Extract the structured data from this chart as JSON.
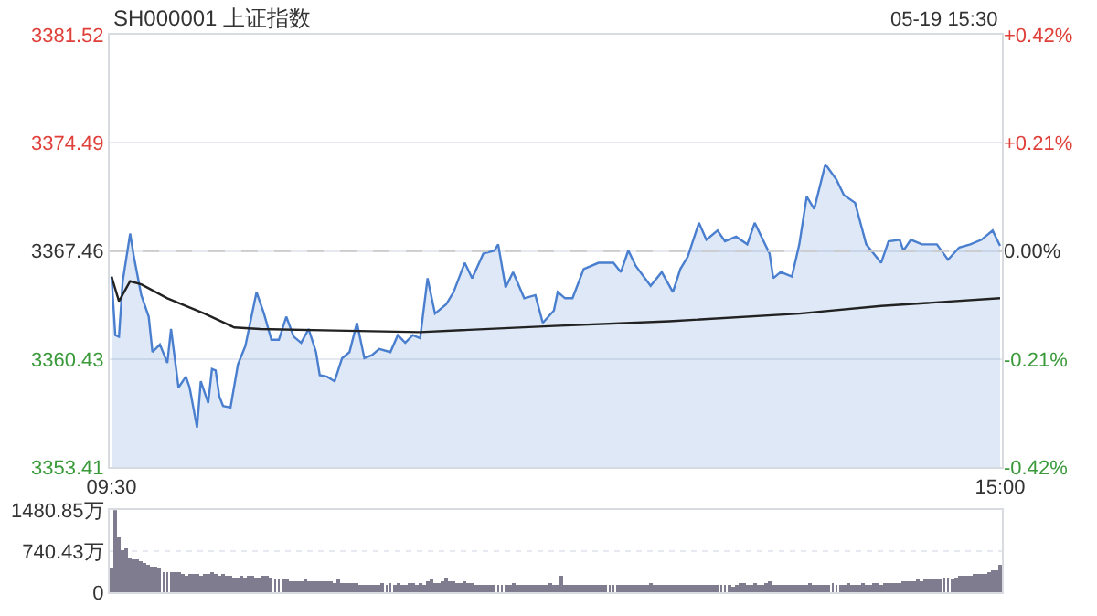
{
  "chart_data": [
    {
      "type": "line",
      "title": "SH000001 上证指数",
      "annotations": [
        "05-19 15:30"
      ],
      "categories": [
        "09:30",
        null,
        null,
        null,
        null,
        null,
        null,
        null,
        null,
        null,
        null,
        null,
        null,
        null,
        null,
        null,
        null,
        null,
        null,
        null,
        null,
        null,
        null,
        null,
        null,
        null,
        null,
        null,
        null,
        null,
        null,
        null,
        null,
        null,
        null,
        null,
        null,
        null,
        null,
        null,
        null,
        null,
        null,
        null,
        null,
        null,
        null,
        null,
        null,
        null,
        null,
        null,
        null,
        null,
        null,
        null,
        null,
        null,
        null,
        null,
        null,
        null,
        null,
        null,
        null,
        null,
        null,
        null,
        null,
        null,
        null,
        null,
        null,
        null,
        null,
        null,
        null,
        null,
        null,
        null,
        null,
        null,
        null,
        null,
        null,
        null,
        null,
        null,
        null,
        null,
        null,
        null,
        null,
        null,
        null,
        null,
        null,
        null,
        null,
        null,
        null,
        null,
        null,
        null,
        null,
        null,
        null,
        null,
        null,
        null,
        null,
        null,
        null,
        null,
        null,
        null,
        null,
        null,
        null,
        null,
        null,
        null,
        null,
        null,
        null,
        null,
        null,
        null,
        null,
        null,
        null,
        null,
        null,
        null,
        null,
        null,
        null,
        null,
        null,
        null,
        null,
        null,
        null,
        null,
        null,
        null,
        null,
        null,
        null,
        null,
        null,
        null,
        null,
        null,
        null,
        null,
        null,
        null,
        null,
        null,
        null,
        null,
        null,
        null,
        null,
        null,
        null,
        null,
        null,
        null,
        null,
        null,
        null,
        null,
        null,
        null,
        null,
        null,
        null,
        null,
        null,
        null,
        null,
        null,
        null,
        null,
        null,
        null,
        null,
        null,
        null,
        null,
        null,
        null,
        null,
        null,
        null,
        null,
        null,
        null,
        null,
        null,
        null,
        null,
        null,
        null,
        null,
        null,
        null,
        null,
        null,
        null,
        null,
        null,
        null,
        null,
        null,
        null,
        null,
        null,
        null,
        null,
        null,
        null,
        null,
        null,
        null,
        null,
        null,
        null,
        null,
        null,
        null,
        null,
        null,
        null,
        null,
        null,
        null,
        "15:00"
      ],
      "ylim": [
        3353.41,
        3381.52
      ],
      "yticks": [
        3353.41,
        3360.43,
        3367.46,
        3374.49,
        3381.52
      ],
      "y2lim": [
        -0.42,
        0.42
      ],
      "y2ticks": [
        {
          "value": -0.42,
          "label": "-0.42%"
        },
        {
          "value": -0.21,
          "label": "-0.21%"
        },
        {
          "value": 0,
          "label": "0.00%"
        },
        {
          "value": 0.21,
          "label": "+0.21%"
        },
        {
          "value": 0.42,
          "label": "+0.42%"
        }
      ],
      "grid": "y",
      "ref_lines": [
        {
          "axis": "y",
          "value": 3367.46,
          "line_style": "dashed",
          "color": "#cccccc"
        }
      ],
      "series": [
        {
          "type": "area",
          "color": "#4a7fcf",
          "values": [
            3365.8,
            3362.0,
            3361.9,
            3365.5,
            null,
            3368.6,
            3367.1,
            null,
            3364.6,
            null,
            3363.2,
            3360.9,
            null,
            3361.4,
            null,
            3360.2,
            3362.4,
            null,
            3358.6,
            null,
            3359.3,
            3358.6,
            null,
            3356.0,
            3359.0,
            null,
            3357.6,
            3359.8,
            3359.7,
            3358.0,
            3357.4,
            null,
            3357.3,
            null,
            3360.1,
            null,
            3361.3,
            null,
            null,
            3364.8,
            null,
            3363.4,
            null,
            3361.7,
            null,
            3361.7,
            null,
            3363.2,
            null,
            3361.9,
            null,
            3361.5,
            null,
            3362.4,
            null,
            3360.9,
            3359.4,
            null,
            3359.3,
            null,
            3359.0,
            null,
            3360.5,
            null,
            3360.9,
            null,
            3362.8,
            null,
            3360.5,
            null,
            3360.7,
            null,
            3361.1,
            null,
            null,
            3360.9,
            null,
            3362.0,
            null,
            3361.5,
            null,
            3362.0,
            null,
            3361.8,
            null,
            3365.7,
            null,
            3363.4,
            null,
            null,
            3364.0,
            null,
            3364.8,
            null,
            null,
            3366.7,
            null,
            3365.7,
            null,
            null,
            3367.3,
            null,
            null,
            3367.5,
            3367.9,
            null,
            3365.1,
            null,
            3366.1,
            null,
            null,
            3364.4,
            null,
            null,
            3364.6,
            null,
            3362.8,
            null,
            null,
            3363.6,
            3364.8,
            null,
            3364.4,
            null,
            3364.4,
            null,
            null,
            3366.3,
            null,
            null,
            null,
            3366.7,
            null,
            null,
            null,
            3366.7,
            null,
            3366.1,
            null,
            3367.5,
            null,
            3366.5,
            null,
            null,
            null,
            3365.2,
            null,
            null,
            3366.1,
            null,
            null,
            3364.8,
            null,
            3366.3,
            null,
            3367.1,
            null,
            null,
            3369.3,
            null,
            3368.2,
            null,
            null,
            3368.8,
            null,
            3368.1,
            null,
            null,
            3368.4,
            null,
            null,
            3367.9,
            null,
            3369.3,
            null,
            null,
            null,
            3367.3,
            3365.7,
            null,
            3366.1,
            null,
            null,
            3365.8,
            null,
            3367.9,
            null,
            3371.0,
            null,
            3370.2,
            null,
            null,
            3373.1,
            null,
            null,
            3372.1,
            null,
            3371.1,
            null,
            null,
            3370.6,
            null,
            null,
            3367.9,
            null,
            null,
            null,
            3366.7,
            null,
            3368.1,
            null,
            null,
            3368.2,
            3367.5,
            null,
            3368.2,
            null,
            null,
            3367.9,
            null,
            null,
            null,
            3367.9,
            null,
            null,
            3366.9,
            null,
            null,
            3367.7,
            null,
            null,
            3367.9,
            null,
            null,
            3368.2,
            null,
            null,
            3368.8,
            null,
            3367.8
          ]
        },
        {
          "type": "line",
          "color": "#222222",
          "values": [
            3365.8,
            null,
            3364.2,
            null,
            null,
            3365.5,
            null,
            null,
            3365.3,
            null,
            null,
            null,
            null,
            null,
            null,
            3364.4,
            null,
            null,
            null,
            null,
            null,
            null,
            null,
            null,
            null,
            3363.4,
            null,
            null,
            null,
            null,
            null,
            null,
            null,
            3362.5,
            null,
            null,
            null,
            null,
            null,
            null,
            3362.4,
            null,
            null,
            null,
            null,
            null,
            null,
            null,
            null,
            null,
            null,
            null,
            null,
            null,
            null,
            null,
            null,
            null,
            null,
            null,
            3362.3,
            null,
            null,
            null,
            null,
            null,
            null,
            null,
            null,
            null,
            null,
            null,
            null,
            null,
            null,
            null,
            null,
            null,
            null,
            null,
            null,
            null,
            null,
            3362.2,
            null,
            null,
            null,
            null,
            null,
            null,
            null,
            null,
            null,
            null,
            null,
            null,
            null,
            null,
            null,
            null,
            null,
            null,
            null,
            null,
            null,
            null,
            null,
            null,
            null,
            null,
            null,
            null,
            null,
            null,
            null,
            null,
            null,
            null,
            null,
            3362.6,
            null,
            null,
            null,
            null,
            null,
            null,
            null,
            null,
            null,
            null,
            null,
            null,
            null,
            null,
            null,
            null,
            null,
            null,
            null,
            null,
            null,
            null,
            null,
            null,
            null,
            null,
            null,
            null,
            null,
            null,
            3362.9,
            null,
            null,
            null,
            null,
            null,
            null,
            null,
            null,
            null,
            null,
            null,
            null,
            null,
            null,
            null,
            null,
            null,
            null,
            null,
            null,
            null,
            null,
            null,
            null,
            null,
            null,
            null,
            null,
            null,
            null,
            null,
            null,
            null,
            null,
            3363.4,
            null,
            null,
            null,
            null,
            null,
            null,
            null,
            null,
            null,
            null,
            null,
            null,
            null,
            null,
            null,
            null,
            null,
            null,
            null,
            null,
            null,
            3363.9,
            null,
            null,
            null,
            null,
            null,
            null,
            null,
            null,
            null,
            null,
            null,
            null,
            null,
            null,
            null,
            null,
            null,
            null,
            null,
            null,
            null,
            null,
            null,
            null,
            null,
            null,
            null,
            null,
            null,
            null,
            null,
            3364.4
          ]
        }
      ]
    },
    {
      "type": "bar",
      "tick_labels": "y",
      "grid": "y",
      "color": "#807c8f",
      "categories": [
        null,
        null,
        null,
        null,
        null,
        null,
        null,
        null,
        null,
        null,
        null,
        null,
        null,
        null,
        null,
        null,
        null,
        null,
        null,
        null,
        null,
        null,
        null,
        null,
        null,
        null,
        null,
        null,
        null,
        null,
        null,
        null,
        null,
        null,
        null,
        null,
        null,
        null,
        null,
        null,
        null,
        null,
        null,
        null,
        null,
        null,
        null,
        null,
        null,
        null,
        null,
        null,
        null,
        null,
        null,
        null,
        null,
        null,
        null,
        null,
        null,
        null,
        null,
        null,
        null,
        null,
        null,
        null,
        null,
        null,
        null,
        null,
        null,
        null,
        null,
        null,
        null,
        null,
        null,
        null,
        null,
        null,
        null,
        null,
        null,
        null,
        null,
        null,
        null,
        null,
        null,
        null,
        null,
        null,
        null,
        null,
        null,
        null,
        null,
        null,
        null,
        null,
        null,
        null,
        null,
        null,
        null,
        null,
        null,
        null,
        null,
        null,
        null,
        null,
        null,
        null,
        null,
        null,
        null,
        null,
        null,
        null,
        null,
        null,
        null,
        null,
        null,
        null,
        null,
        null,
        null,
        null,
        null,
        null,
        null,
        null,
        null,
        null,
        null,
        null,
        null,
        null,
        null,
        null,
        null,
        null,
        null,
        null,
        null,
        null,
        null,
        null,
        null,
        null,
        null,
        null,
        null,
        null,
        null,
        null,
        null,
        null,
        null,
        null,
        null,
        null,
        null,
        null,
        null,
        null,
        null,
        null,
        null,
        null,
        null,
        null,
        null,
        null,
        null,
        null,
        null,
        null,
        null,
        null,
        null,
        null,
        null,
        null,
        null,
        null,
        null,
        null,
        null,
        null,
        null,
        null,
        null,
        null,
        null,
        null,
        null,
        null,
        null,
        null,
        null,
        null,
        null,
        null,
        null,
        null,
        null,
        null,
        null,
        null,
        null,
        null,
        null,
        null,
        null,
        null,
        null,
        null,
        null,
        null,
        null,
        null,
        null,
        null,
        null,
        null,
        null,
        null,
        null,
        null,
        null,
        null,
        null,
        null,
        null,
        null
      ],
      "ylim": [
        0,
        1480.85
      ],
      "yticks": [
        0,
        {
          "value": 740.43,
          "label": "740.43万"
        },
        {
          "value": 1480.85,
          "label": "1480.85万"
        }
      ],
      "values": [
        430,
        1480,
        990,
        740,
        780,
        620,
        600,
        580,
        560,
        530,
        500,
        470,
        450,
        420,
        370,
        360,
        370,
        370,
        360,
        330,
        300,
        320,
        340,
        330,
        300,
        320,
        340,
        350,
        310,
        300,
        330,
        300,
        280,
        270,
        260,
        290,
        270,
        280,
        290,
        270,
        260,
        300,
        280,
        250,
        230,
        210,
        230,
        220,
        200,
        200,
        190,
        200,
        210,
        200,
        190,
        200,
        200,
        190,
        180,
        200,
        170,
        220,
        170,
        150,
        160,
        150,
        150,
        140,
        140,
        130,
        140,
        140,
        130,
        150,
        140,
        160,
        130,
        150,
        120,
        140,
        150,
        150,
        130,
        170,
        140,
        180,
        220,
        170,
        160,
        200,
        250,
        200,
        180,
        150,
        160,
        200,
        150,
        170,
        140,
        130,
        140,
        130,
        130,
        120,
        130,
        140,
        120,
        130,
        150,
        120,
        130,
        140,
        120,
        130,
        140,
        120,
        130,
        120,
        150,
        130,
        130,
        280,
        130,
        140,
        120,
        130,
        120,
        130,
        140,
        120,
        130,
        120,
        140,
        130,
        120,
        140,
        130,
        120,
        130,
        140,
        120,
        130,
        140,
        120,
        130,
        150,
        120,
        130,
        140,
        120,
        130,
        120,
        140,
        130,
        120,
        130,
        140,
        120,
        130,
        120,
        130,
        140,
        120,
        130,
        140,
        120,
        130,
        110,
        130,
        150,
        160,
        140,
        130,
        150,
        140,
        130,
        170,
        190,
        140,
        130,
        120,
        140,
        130,
        120,
        130,
        140,
        120,
        130,
        150,
        140,
        130,
        140,
        120,
        130,
        150,
        140,
        130,
        140,
        150,
        130,
        140,
        130,
        150,
        140,
        130,
        150,
        160,
        140,
        150,
        170,
        160,
        170,
        150,
        180,
        200,
        190,
        180,
        210,
        200,
        220,
        230,
        220,
        240,
        230,
        250,
        260,
        240,
        270,
        280,
        290,
        300,
        290,
        320,
        310,
        340,
        330,
        360,
        380,
        400,
        500
      ]
    }
  ]
}
